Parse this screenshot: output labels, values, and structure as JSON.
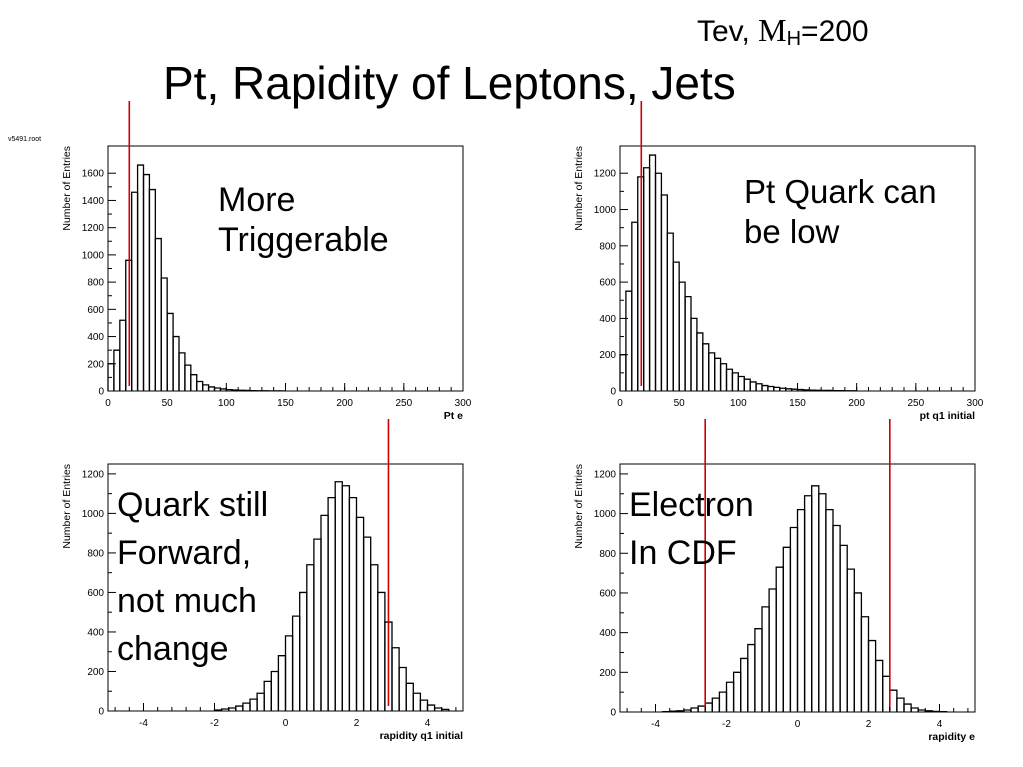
{
  "title": "Pt, Rapidity of Leptons, Jets",
  "energy_label": {
    "text": "Tev, ",
    "symbol": "M",
    "subscript": "H",
    "value": "=200"
  },
  "file_label": "v5491.root",
  "notes": {
    "pt_e": [
      "More",
      "Triggerable"
    ],
    "pt_q1": [
      "Pt Quark can",
      "be low"
    ],
    "rap_q1": [
      "Quark still",
      "Forward,",
      "not much",
      "change"
    ],
    "rap_e": [
      "Electron",
      "In CDF"
    ]
  },
  "colors": {
    "histogram": "#000000",
    "cut_line": "#cc0000",
    "background": "#ffffff"
  },
  "chart_data": [
    {
      "type": "bar",
      "id": "pt_e",
      "xlabel": "Pt e",
      "ylabel": "Number of Entries",
      "xlim": [
        0,
        300
      ],
      "ylim": [
        0,
        1800
      ],
      "x_ticks": [
        0,
        50,
        100,
        150,
        200,
        250,
        300
      ],
      "y_ticks": [
        0,
        200,
        400,
        600,
        800,
        1000,
        1200,
        1400,
        1600
      ],
      "bin_start": 0,
      "bin_width": 5,
      "values": [
        200,
        300,
        520,
        960,
        1460,
        1660,
        1590,
        1480,
        1120,
        830,
        570,
        400,
        280,
        190,
        120,
        70,
        45,
        30,
        22,
        15,
        10,
        7,
        5,
        4,
        3,
        2,
        2,
        1,
        1,
        1
      ],
      "cut_lines": [
        18
      ]
    },
    {
      "type": "bar",
      "id": "pt_q1",
      "xlabel": "pt q1 initial",
      "ylabel": "Number of Entries",
      "xlim": [
        0,
        300
      ],
      "ylim": [
        0,
        1350
      ],
      "x_ticks": [
        0,
        50,
        100,
        150,
        200,
        250,
        300
      ],
      "y_ticks": [
        0,
        200,
        400,
        600,
        800,
        1000,
        1200
      ],
      "bin_start": 0,
      "bin_width": 5,
      "values": [
        200,
        550,
        930,
        1180,
        1230,
        1300,
        1200,
        1080,
        870,
        710,
        600,
        520,
        400,
        320,
        260,
        210,
        180,
        150,
        120,
        100,
        80,
        65,
        50,
        40,
        30,
        25,
        20,
        15,
        12,
        10,
        8,
        6,
        5,
        4,
        3,
        3,
        2,
        2,
        1,
        1
      ],
      "cut_lines": [
        18
      ]
    },
    {
      "type": "bar",
      "id": "rap_q1",
      "xlabel": "rapidity q1 initial",
      "ylabel": "Number of Entries",
      "xlim": [
        -5,
        5
      ],
      "ylim": [
        0,
        1250
      ],
      "x_ticks": [
        -4,
        -2,
        0,
        2,
        4
      ],
      "y_ticks": [
        0,
        200,
        400,
        600,
        800,
        1000,
        1200
      ],
      "bin_start": -2.0,
      "bin_width": 0.2,
      "values": [
        5,
        10,
        15,
        25,
        40,
        60,
        90,
        150,
        200,
        280,
        380,
        480,
        600,
        740,
        870,
        990,
        1080,
        1160,
        1140,
        1080,
        980,
        880,
        740,
        600,
        450,
        320,
        220,
        140,
        90,
        55,
        30,
        15,
        8
      ],
      "cut_lines": [
        2.9
      ]
    },
    {
      "type": "bar",
      "id": "rap_e",
      "xlabel": "rapidity e",
      "ylabel": "Number of Entries",
      "xlim": [
        -5,
        5
      ],
      "ylim": [
        0,
        1250
      ],
      "x_ticks": [
        -4,
        -2,
        0,
        2,
        4
      ],
      "y_ticks": [
        0,
        200,
        400,
        600,
        800,
        1000,
        1200
      ],
      "bin_start": -3.8,
      "bin_width": 0.2,
      "values": [
        2,
        4,
        6,
        10,
        20,
        30,
        45,
        70,
        100,
        150,
        200,
        270,
        340,
        420,
        530,
        620,
        730,
        830,
        930,
        1020,
        1090,
        1140,
        1100,
        1020,
        940,
        840,
        720,
        600,
        480,
        360,
        260,
        180,
        110,
        70,
        40,
        20,
        10,
        6,
        3,
        2
      ],
      "cut_lines": [
        -2.6,
        2.6
      ]
    }
  ]
}
